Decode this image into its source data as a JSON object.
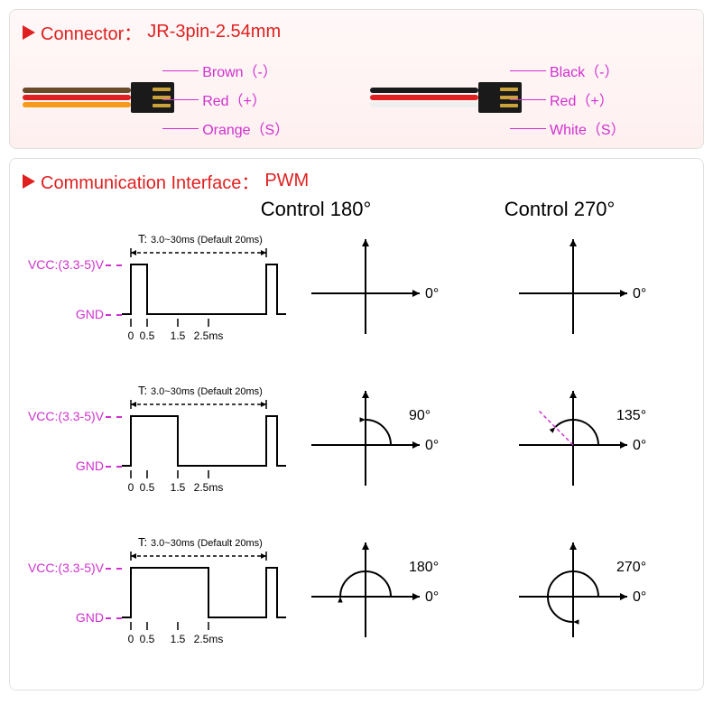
{
  "connector": {
    "header_key": "Connector：",
    "header_val": "JR-3pin-2.54mm",
    "left": {
      "wires": [
        "#6b4a2a",
        "#e02020",
        "#f59a1a"
      ],
      "pins": [
        {
          "label": "Brown（-）",
          "color": "#d030d0"
        },
        {
          "label": "Red（+）",
          "color": "#d030d0"
        },
        {
          "label": "Orange（S）",
          "color": "#d030d0"
        }
      ]
    },
    "right": {
      "wires": [
        "#1a1a1a",
        "#e02020",
        "#efefef"
      ],
      "pins": [
        {
          "label": "Black（-）",
          "color": "#d030d0"
        },
        {
          "label": "Red（+）",
          "color": "#d030d0"
        },
        {
          "label": "White（S）",
          "color": "#d030d0"
        }
      ]
    }
  },
  "comm": {
    "header_key": "Communication Interface：",
    "header_val": "PWM",
    "columns": [
      "Control 180°",
      "Control 270°"
    ],
    "vcc_label": "VCC:(3.3-5)V",
    "gnd_label": "GND",
    "period_label": "T:",
    "period_text": "3.0~30ms (Default 20ms)",
    "x_ticks": [
      "0",
      "0.5",
      "1.5",
      "2.5ms"
    ],
    "zero_label": "0°",
    "axis_color": "#000",
    "dash_color": "#d030d0",
    "rows": [
      {
        "pulse_end_tick_index": 1,
        "angles": [
          {
            "deg": 0,
            "label": "0°",
            "arc": false
          },
          {
            "deg": 0,
            "label": "0°",
            "arc": false
          }
        ]
      },
      {
        "pulse_end_tick_index": 2,
        "angles": [
          {
            "deg": 90,
            "label": "90°",
            "arc": true,
            "dash_past": false
          },
          {
            "deg": 135,
            "label": "135°",
            "arc": true,
            "dash_past": true
          }
        ]
      },
      {
        "pulse_end_tick_index": 3,
        "angles": [
          {
            "deg": 180,
            "label": "180°",
            "arc": true,
            "dash_past": false
          },
          {
            "deg": 270,
            "label": "270°",
            "arc": true,
            "dash_past": false
          }
        ]
      }
    ]
  }
}
